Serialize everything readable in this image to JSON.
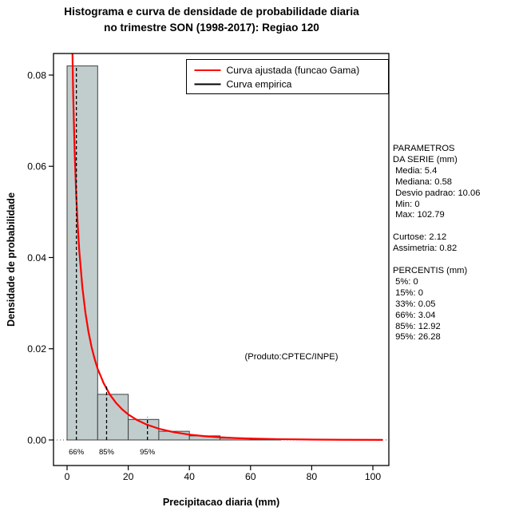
{
  "title": {
    "line1": "Histograma e curva de densidade de probabilidade diaria",
    "line2": "no trimestre SON (1998-2017): Regiao 120"
  },
  "axes": {
    "x_label": "Precipitacao diaria (mm)",
    "y_label": "Densidade de probabilidade",
    "x_ticks": [
      0,
      20,
      40,
      60,
      80,
      100
    ],
    "x_tick_labels": [
      "0",
      "20",
      "40",
      "60",
      "80",
      "100"
    ],
    "y_ticks": [
      0,
      0.02,
      0.04,
      0.06,
      0.08
    ],
    "y_tick_labels": [
      "0.00",
      "0.02",
      "0.04",
      "0.06",
      "0.08"
    ]
  },
  "legend": {
    "items": [
      {
        "label": "Curva ajustada (funcao Gama)",
        "color": "#ff0000"
      },
      {
        "label": "Curva empirica",
        "color": "#000000"
      }
    ]
  },
  "chart_data": {
    "type": "bar",
    "subtype": "histogram-with-density-curves",
    "title": "Histograma e curva de densidade de probabilidade diaria no trimestre SON (1998-2017): Regiao 120",
    "xlabel": "Precipitacao diaria (mm)",
    "ylabel": "Densidade de probabilidade",
    "xlim": [
      -4.4,
      105.2
    ],
    "ylim": [
      0,
      0.0847
    ],
    "grid": false,
    "legend_position": "top-right-inside",
    "bins": {
      "breaks": [
        0,
        10,
        20,
        30,
        40,
        50,
        60,
        70
      ],
      "densities": [
        0.082,
        0.01,
        0.0045,
        0.0019,
        0.0009,
        0.0004,
        0.00015
      ]
    },
    "fitted_gamma": {
      "label": "Curva ajustada (funcao Gama)",
      "color": "#ff0000",
      "x": [
        0.2,
        0.3,
        0.5,
        0.8,
        1,
        1.2,
        1.5,
        2,
        2.5,
        3,
        3.5,
        4,
        5,
        6,
        7,
        8,
        9,
        10,
        12,
        14,
        16,
        18,
        20,
        23,
        26,
        30,
        35,
        40,
        45,
        50,
        55,
        60,
        70,
        80,
        90,
        103
      ],
      "y": [
        0.428,
        0.319,
        0.219,
        0.1545,
        0.13,
        0.1133,
        0.0951,
        0.0756,
        0.0627,
        0.0536,
        0.0468,
        0.0414,
        0.0335,
        0.0279,
        0.0237,
        0.0204,
        0.0178,
        0.0156,
        0.0124,
        0.00995,
        0.00814,
        0.00672,
        0.0056,
        0.00433,
        0.00338,
        0.00247,
        0.00169,
        0.00117,
        0.00083,
        0.00059,
        0.00042,
        0.0003,
        0.00016,
        9e-05,
        5e-05,
        2e-05
      ]
    },
    "empirical": {
      "label": "Curva empirica",
      "color": "#000000",
      "x": [
        0.2,
        0.3,
        0.5,
        0.8,
        1,
        1.2,
        1.5,
        2,
        2.5,
        3,
        3.5,
        4,
        5,
        6,
        7,
        8,
        9,
        10,
        12,
        14,
        16,
        18,
        20,
        23,
        26,
        30,
        35,
        40,
        45,
        50,
        55,
        60,
        70,
        80,
        90,
        103
      ],
      "y": [
        0.428,
        0.319,
        0.219,
        0.1545,
        0.13,
        0.1133,
        0.0951,
        0.0756,
        0.0627,
        0.0536,
        0.0468,
        0.0414,
        0.0335,
        0.0279,
        0.0237,
        0.0204,
        0.0178,
        0.0156,
        0.0124,
        0.00995,
        0.00814,
        0.00672,
        0.0056,
        0.00433,
        0.00338,
        0.00247,
        0.00169,
        0.00117,
        0.00083,
        0.00059,
        0.00042,
        0.0003,
        0.00016,
        9e-05,
        5e-05,
        2e-05
      ]
    },
    "percentiles_marked": [
      {
        "label": "66%",
        "x": 3.04,
        "line_top": 0.082
      },
      {
        "label": "85%",
        "x": 12.92,
        "line_top": 0.012
      },
      {
        "label": "95%",
        "x": 26.28,
        "line_top": 0.005
      }
    ],
    "annotation": "(Produto:CPTEC/INPE)"
  },
  "stats_panel": {
    "lines": [
      "PARAMETROS",
      "DA SERIE (mm)",
      " Media: 5.4",
      " Mediana: 0.58",
      " Desvio padrao: 10.06",
      " Min: 0",
      " Max: 102.79",
      "",
      "Curtose: 2.12",
      "Assimetria: 0.82",
      "",
      "PERCENTIS (mm)",
      " 5%: 0",
      " 15%: 0",
      " 33%: 0.05",
      " 66%: 3.04",
      " 85%: 12.92",
      " 95%: 26.28"
    ]
  },
  "colors": {
    "bar_fill": "#c1cdcd",
    "bar_border": "#404040",
    "fitted_curve": "#ff0000",
    "empirical_curve": "#000000",
    "axis": "#000000"
  }
}
